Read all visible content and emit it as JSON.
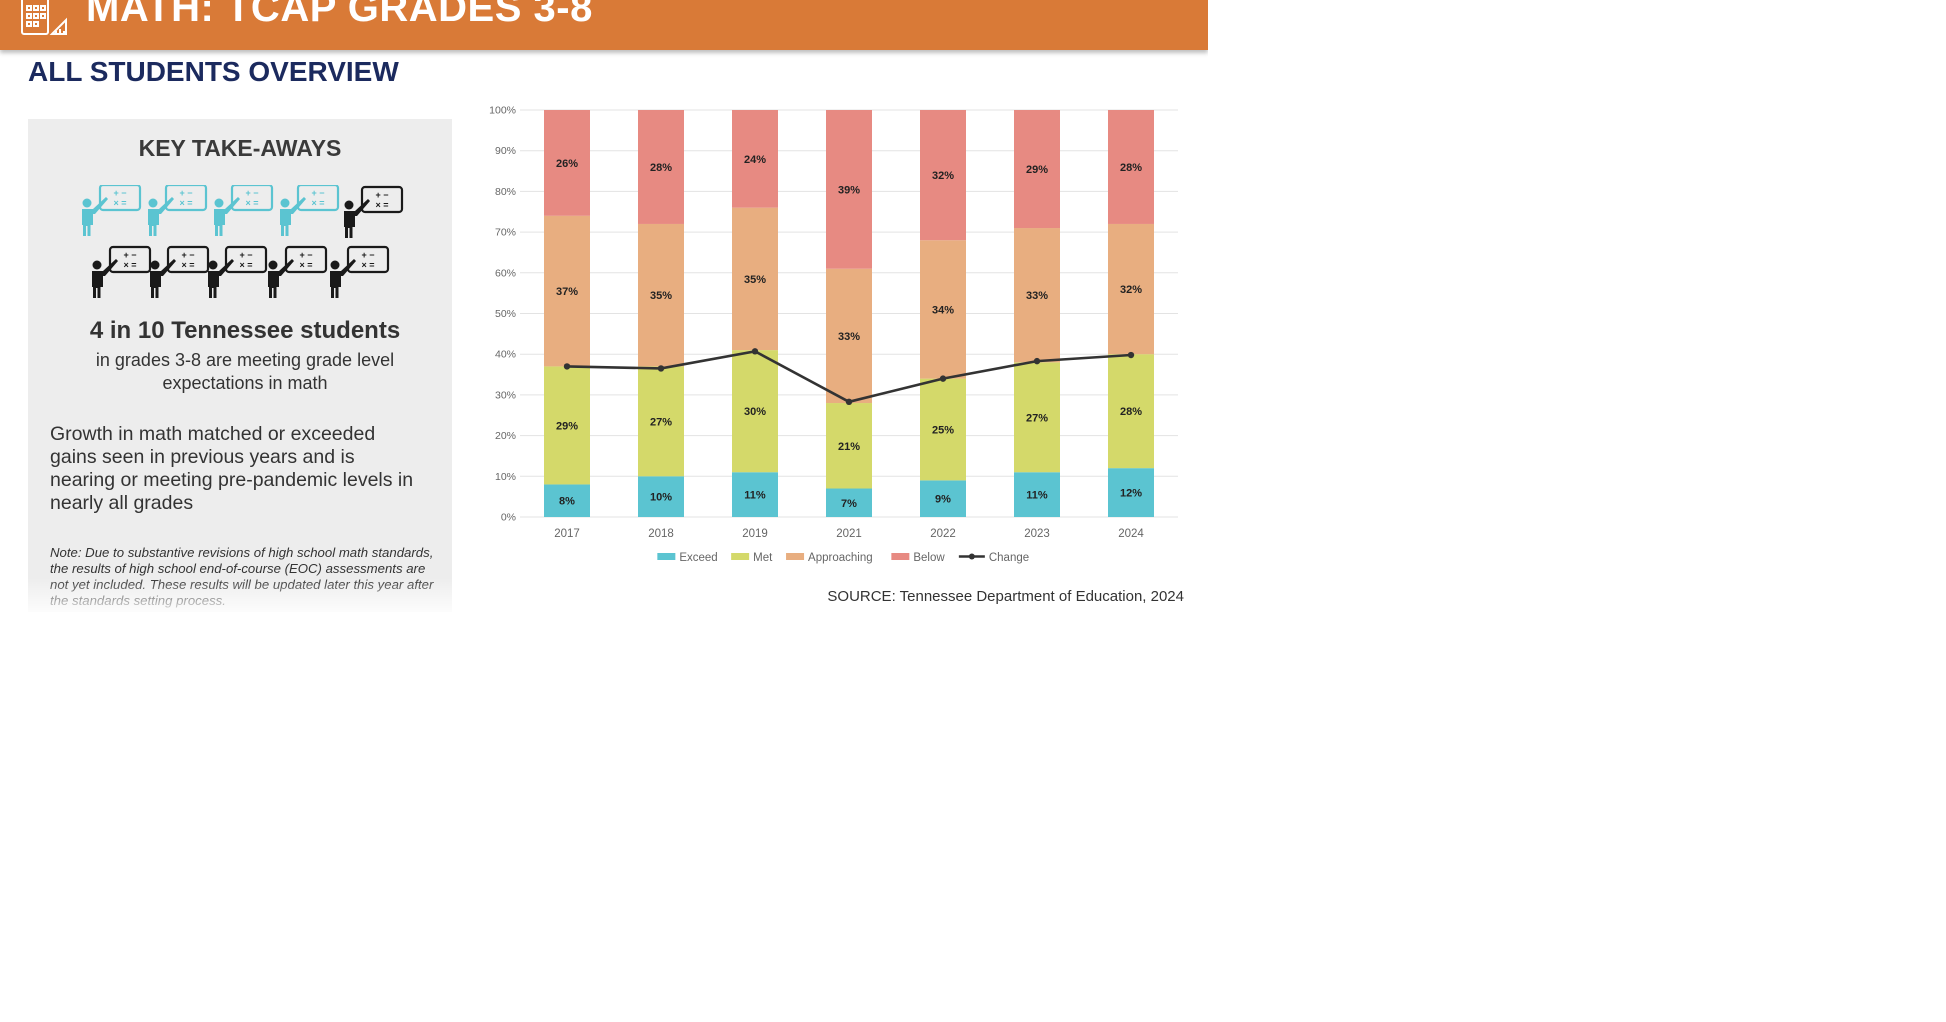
{
  "header": {
    "title": "MATH: TCAP GRADES 3-8",
    "icon": "calculator-ruler-icon"
  },
  "subtitle": "ALL STUDENTS OVERVIEW",
  "takeaways": {
    "heading": "KEY TAKE-AWAYS",
    "stat_headline": "4 in 10 Tennessee students",
    "stat_detail": "in grades 3-8 are meeting grade level expectations in math",
    "growth_text": "Growth in math matched or exceeded gains seen in previous years and is nearing or meeting pre-pandemic levels in nearly all grades",
    "note": "Note: Due to substantive revisions of high school math standards, the results of high school end-of-course (EOC) assessments are not yet included. These results will be updated later this year after the standards setting process.",
    "icon_board_symbols": "+ − × =",
    "highlight_color": "#5bc4d1",
    "base_color": "#1a1a1a"
  },
  "source": "SOURCE: Tennessee Department of Education, 2024",
  "chart_data": {
    "type": "bar",
    "stacked": true,
    "categories": [
      "2017",
      "2018",
      "2019",
      "2021",
      "2022",
      "2023",
      "2024"
    ],
    "series": [
      {
        "name": "Exceed",
        "color": "#5bc4d1",
        "values": [
          8,
          10,
          11,
          7,
          9,
          11,
          12
        ]
      },
      {
        "name": "Met",
        "color": "#d4d96a",
        "values": [
          29,
          27,
          30,
          21,
          25,
          27,
          28
        ]
      },
      {
        "name": "Approaching",
        "color": "#e8ae80",
        "values": [
          37,
          35,
          35,
          33,
          34,
          33,
          32
        ]
      },
      {
        "name": "Below",
        "color": "#e78a82",
        "values": [
          26,
          28,
          24,
          39,
          32,
          29,
          28
        ]
      }
    ],
    "line_series": {
      "name": "Change",
      "color": "#333333",
      "values": [
        37,
        36.5,
        40.7,
        28.3,
        34,
        38.3,
        39.8
      ]
    },
    "data_labels": {
      "Exceed": [
        "8%",
        "10%",
        "11%",
        "7%",
        "9%",
        "11%",
        "12%"
      ],
      "Met": [
        "29%",
        "27%",
        "30%",
        "21%",
        "25%",
        "27%",
        "28%"
      ],
      "Approaching": [
        "37%",
        "35%",
        "35%",
        "33%",
        "34%",
        "33%",
        "32%"
      ],
      "Below": [
        "26%",
        "28%",
        "24%",
        "39%",
        "32%",
        "29%",
        "28%"
      ]
    },
    "y_ticks": [
      "0%",
      "10%",
      "20%",
      "30%",
      "40%",
      "50%",
      "60%",
      "70%",
      "80%",
      "90%",
      "100%"
    ],
    "ylim": [
      0,
      100
    ],
    "grid": true,
    "legend": "bottom"
  }
}
